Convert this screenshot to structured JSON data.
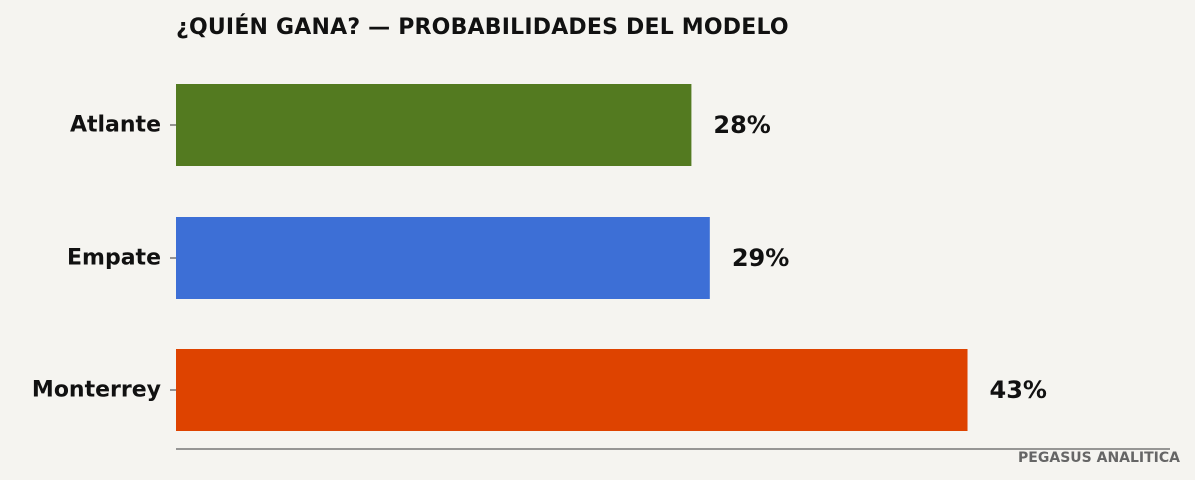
{
  "chart_data": {
    "type": "bar",
    "orientation": "horizontal",
    "title": "¿QUIÉN GANA? — PROBABILIDADES DEL MODELO",
    "categories": [
      "Atlante",
      "Empate",
      "Monterrey"
    ],
    "values": [
      28,
      29,
      43
    ],
    "value_labels": [
      "28%",
      "29%",
      "43%"
    ],
    "colors": [
      "#537a20",
      "#3d6fd6",
      "#de4300"
    ],
    "xlim": [
      0,
      54
    ],
    "grid": false,
    "legend": "none"
  },
  "source_label": "PEGASUS ANALITICA"
}
